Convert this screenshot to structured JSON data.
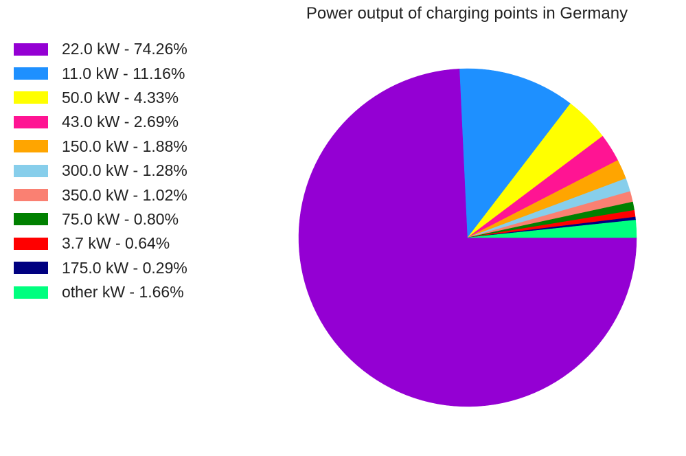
{
  "chart_data": {
    "type": "pie",
    "title": "Power output of charging points in Germany",
    "start_angle_deg": 0,
    "direction": "clockwise",
    "legend_position": "left",
    "slices": [
      {
        "label": "22.0 kW - 74.26%",
        "category": "22.0 kW",
        "value": 74.26,
        "color": "#9400D3"
      },
      {
        "label": "11.0 kW - 11.16%",
        "category": "11.0 kW",
        "value": 11.16,
        "color": "#1E90FF"
      },
      {
        "label": "50.0 kW - 4.33%",
        "category": "50.0 kW",
        "value": 4.33,
        "color": "#FFFF00"
      },
      {
        "label": "43.0 kW - 2.69%",
        "category": "43.0 kW",
        "value": 2.69,
        "color": "#FF1493"
      },
      {
        "label": "150.0 kW - 1.88%",
        "category": "150.0 kW",
        "value": 1.88,
        "color": "#FFA500"
      },
      {
        "label": "300.0 kW - 1.28%",
        "category": "300.0 kW",
        "value": 1.28,
        "color": "#87CEEB"
      },
      {
        "label": "350.0 kW - 1.02%",
        "category": "350.0 kW",
        "value": 1.02,
        "color": "#FA8072"
      },
      {
        "label": "75.0 kW - 0.80%",
        "category": "75.0 kW",
        "value": 0.8,
        "color": "#008000"
      },
      {
        "label": "3.7 kW - 0.64%",
        "category": "3.7 kW",
        "value": 0.64,
        "color": "#FF0000"
      },
      {
        "label": "175.0 kW - 0.29%",
        "category": "175.0 kW",
        "value": 0.29,
        "color": "#000080"
      },
      {
        "label": "other kW - 1.66%",
        "category": "other kW",
        "value": 1.66,
        "color": "#00FF7F"
      }
    ]
  }
}
